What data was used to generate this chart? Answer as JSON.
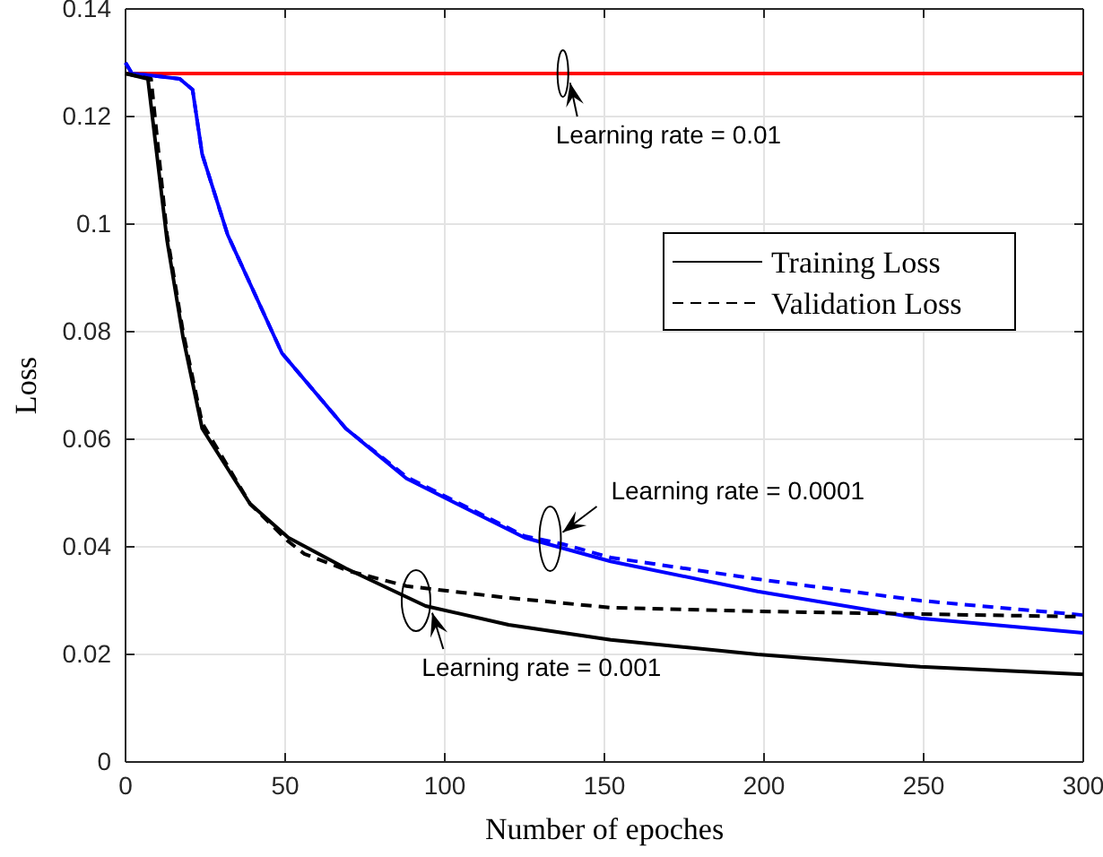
{
  "chart_data": {
    "type": "line",
    "xlabel": "Number of epoches",
    "ylabel": "Loss",
    "xlim": [
      0,
      300
    ],
    "ylim": [
      0,
      0.14
    ],
    "xticks": [
      0,
      50,
      100,
      150,
      200,
      250,
      300
    ],
    "yticks": [
      0,
      0.02,
      0.04,
      0.06,
      0.08,
      0.1,
      0.12,
      0.14
    ],
    "grid": true,
    "legend": "right",
    "marker": "none",
    "series": [
      {
        "color": "#ff0000",
        "line_style": "solid",
        "x": [
          0,
          50,
          100,
          150,
          200,
          250,
          300
        ],
        "values": [
          0.128,
          0.128,
          0.128,
          0.128,
          0.128,
          0.128,
          0.128
        ]
      },
      {
        "color": "#0000ff",
        "line_style": "dashed",
        "x": [
          0,
          2,
          10,
          17,
          21,
          24,
          32,
          49,
          69,
          88,
          125,
          137,
          152,
          198,
          249,
          300
        ],
        "values": [
          0.13,
          0.128,
          0.1275,
          0.127,
          0.125,
          0.113,
          0.098,
          0.076,
          0.062,
          0.053,
          0.042,
          0.0405,
          0.038,
          0.034,
          0.03,
          0.0273
        ]
      },
      {
        "color": "#0000ff",
        "line_style": "solid",
        "x": [
          0,
          2,
          10,
          17,
          21,
          24,
          32,
          49,
          69,
          88,
          125,
          152,
          198,
          249,
          300
        ],
        "values": [
          0.13,
          0.128,
          0.1275,
          0.127,
          0.125,
          0.113,
          0.098,
          0.076,
          0.062,
          0.0527,
          0.0417,
          0.0373,
          0.0317,
          0.0267,
          0.024
        ]
      },
      {
        "name": "Validation Loss",
        "color": "#000000",
        "line_style": "dashed",
        "x": [
          0,
          8,
          13,
          18,
          24,
          39,
          51,
          56,
          70,
          88,
          120,
          152,
          198,
          249,
          300
        ],
        "values": [
          0.128,
          0.127,
          0.098,
          0.08,
          0.063,
          0.048,
          0.041,
          0.0387,
          0.0355,
          0.0327,
          0.0305,
          0.0287,
          0.028,
          0.0275,
          0.027
        ]
      },
      {
        "name": "Training Loss",
        "color": "#000000",
        "line_style": "solid",
        "x": [
          0,
          7,
          13,
          18,
          24,
          39,
          51,
          69,
          94,
          120,
          152,
          198,
          249,
          300
        ],
        "values": [
          0.128,
          0.127,
          0.097,
          0.079,
          0.062,
          0.048,
          0.0417,
          0.036,
          0.029,
          0.0255,
          0.0227,
          0.02,
          0.0177,
          0.0163
        ]
      }
    ],
    "annotations": [
      {
        "text": "Learning rate = 0.01",
        "x": 137,
        "y": 0.128
      },
      {
        "text": "Learning rate = 0.0001",
        "x": 133,
        "y": 0.0415
      },
      {
        "text": "Learning rate = 0.001",
        "x": 91,
        "y": 0.03
      }
    ]
  }
}
